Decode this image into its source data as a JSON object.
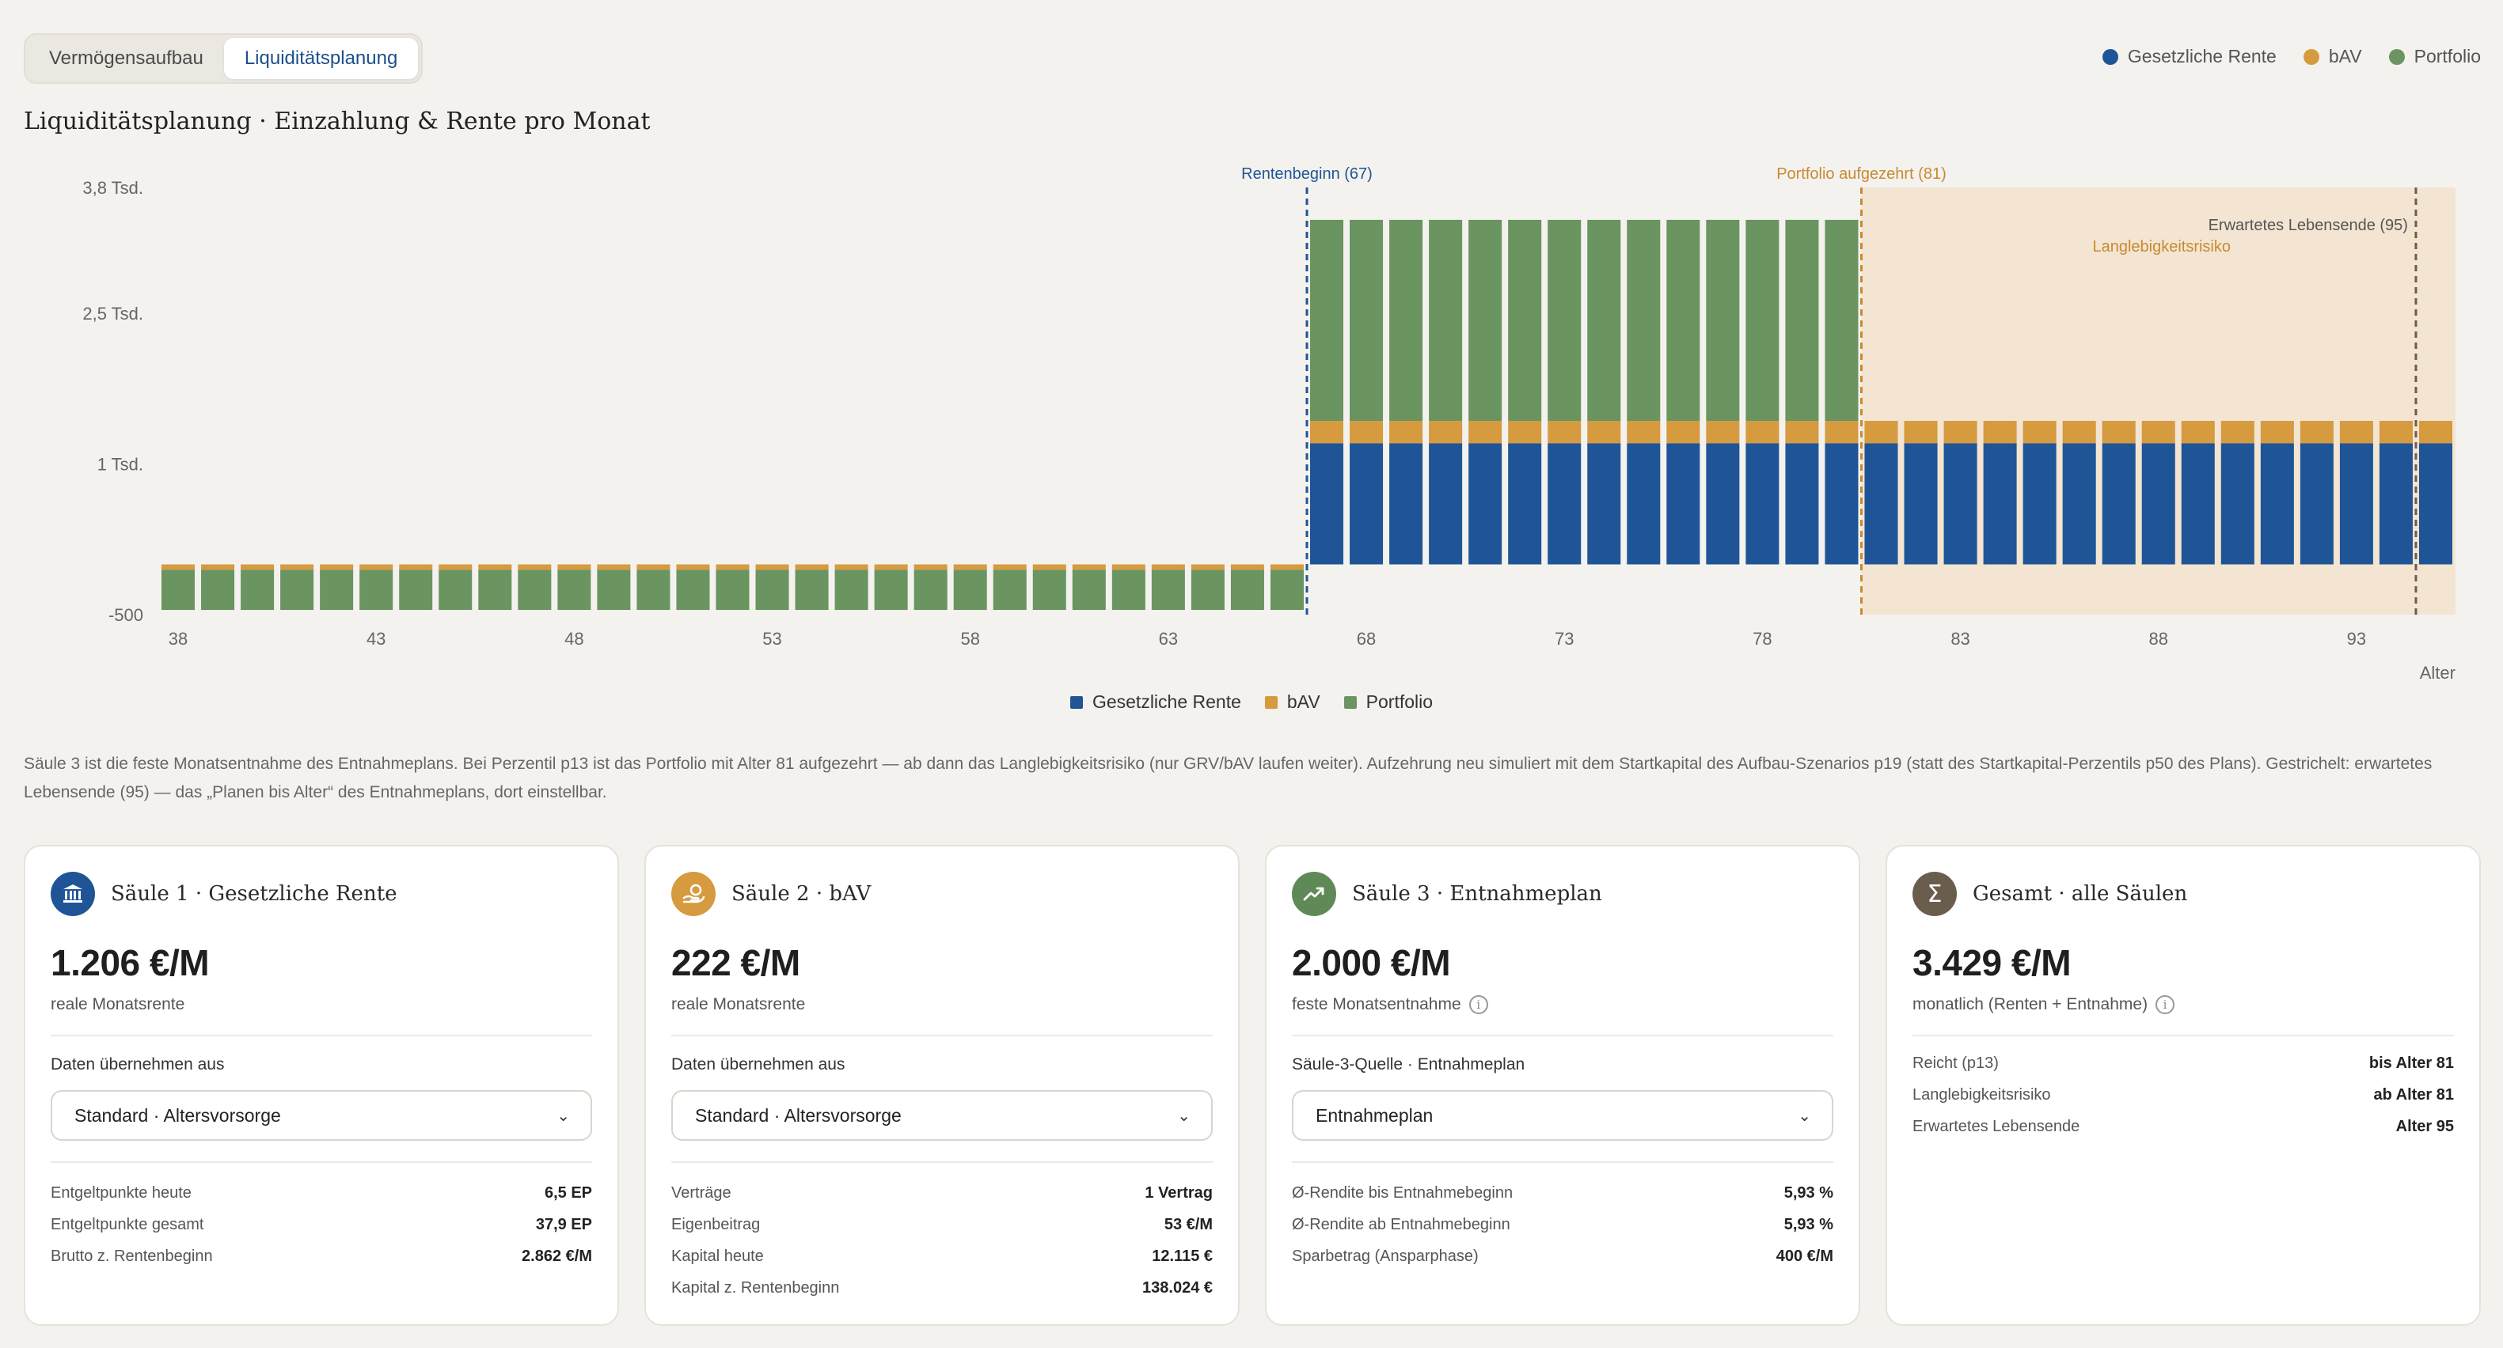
{
  "tabs": [
    {
      "label": "Vermögensaufbau",
      "active": false
    },
    {
      "label": "Liquiditätsplanung",
      "active": true
    }
  ],
  "legend": [
    {
      "label": "Gesetzliche Rente",
      "color": "#1f5596"
    },
    {
      "label": "bAV",
      "color": "#d69a3f"
    },
    {
      "label": "Portfolio",
      "color": "#6a9460"
    }
  ],
  "title": "Liquiditätsplanung · Einzahlung & Rente pro Monat",
  "chart_data": {
    "type": "bar",
    "stacked": true,
    "x_label": "Alter",
    "y_ticks": [
      {
        "value": 3750,
        "label": "3,8 Tsd."
      },
      {
        "value": 2500,
        "label": "2,5 Tsd."
      },
      {
        "value": 1000,
        "label": "1 Tsd."
      },
      {
        "value": -500,
        "label": "-500"
      }
    ],
    "ylim": [
      -500,
      3750
    ],
    "x_ticks": [
      38,
      43,
      48,
      53,
      58,
      63,
      68,
      73,
      78,
      83,
      88,
      93
    ],
    "ages": [
      38,
      39,
      40,
      41,
      42,
      43,
      44,
      45,
      46,
      47,
      48,
      49,
      50,
      51,
      52,
      53,
      54,
      55,
      56,
      57,
      58,
      59,
      60,
      61,
      62,
      63,
      64,
      65,
      66,
      67,
      68,
      69,
      70,
      71,
      72,
      73,
      74,
      75,
      76,
      77,
      78,
      79,
      80,
      81,
      82,
      83,
      84,
      85,
      86,
      87,
      88,
      89,
      90,
      91,
      92,
      93,
      94,
      95
    ],
    "phases": [
      {
        "from_age": 38,
        "to_age": 66,
        "grv": 0,
        "bav": -53,
        "portfolio": -400
      },
      {
        "from_age": 67,
        "to_age": 80,
        "grv": 1206,
        "bav": 222,
        "portfolio": 2000
      },
      {
        "from_age": 81,
        "to_age": 95,
        "grv": 1206,
        "bav": 222,
        "portfolio": 0
      }
    ],
    "markers": [
      {
        "age": 67,
        "label": "Rentenbeginn (67)",
        "color": "#1f5596"
      },
      {
        "age": 81,
        "label": "Portfolio aufgezehrt (81)",
        "color": "#c88a30"
      },
      {
        "age": 95,
        "label": "Erwartetes Lebensende (95)",
        "color": "#6b5d4d"
      }
    ],
    "risk_zone": {
      "from_age": 81,
      "to_age": 95,
      "label": "Langlebigkeitsrisiko"
    }
  },
  "footnote": "Säule 3 ist die feste Monatsentnahme des Entnahmeplans. Bei Perzentil p13 ist das Portfolio mit Alter 81 aufgezehrt — ab dann das Langlebigkeitsrisiko (nur GRV/bAV laufen weiter). Aufzehrung neu simuliert mit dem Startkapital des Aufbau-Szenarios p19 (statt des Startkapital-Perzentils p50 des Plans). Gestrichelt: erwartetes Lebensende (95) — das „Planen bis Alter“ des Entnahmeplans, dort einstellbar.",
  "cards": {
    "grv": {
      "title": "Säule 1 · Gesetzliche Rente",
      "icon": "bank-icon",
      "color": "#1f5596",
      "value": "1.206 €/M",
      "sub": "reale Monatsrente",
      "source_label": "Daten übernehmen aus",
      "select": "Standard · Altersvorsorge",
      "rows": [
        {
          "k": "Entgeltpunkte heute",
          "v": "6,5 EP"
        },
        {
          "k": "Entgeltpunkte gesamt",
          "v": "37,9 EP"
        },
        {
          "k": "Brutto z. Rentenbeginn",
          "v": "2.862 €/M"
        }
      ]
    },
    "bav": {
      "title": "Säule 2 · bAV",
      "icon": "handshake-coin-icon",
      "color": "#d69a3f",
      "value": "222 €/M",
      "sub": "reale Monatsrente",
      "source_label": "Daten übernehmen aus",
      "select": "Standard · Altersvorsorge",
      "rows": [
        {
          "k": "Verträge",
          "v": "1 Vertrag"
        },
        {
          "k": "Eigenbeitrag",
          "v": "53 €/M"
        },
        {
          "k": "Kapital heute",
          "v": "12.115 €"
        },
        {
          "k": "Kapital z. Rentenbeginn",
          "v": "138.024 €"
        }
      ]
    },
    "plan": {
      "title": "Säule 3 · Entnahmeplan",
      "icon": "trend-up-icon",
      "color": "#5f8a57",
      "value": "2.000 €/M",
      "sub": "feste Monatsentnahme",
      "source_label": "Säule-3-Quelle · Entnahmeplan",
      "select": "Entnahmeplan",
      "rows": [
        {
          "k": "Ø-Rendite bis Entnahmebeginn",
          "v": "5,93 %"
        },
        {
          "k": "Ø-Rendite ab Entnahmebeginn",
          "v": "5,93 %"
        },
        {
          "k": "Sparbetrag (Ansparphase)",
          "v": "400 €/M"
        }
      ]
    },
    "total": {
      "title": "Gesamt · alle Säulen",
      "icon": "sigma-icon",
      "color": "#6b5d4d",
      "value": "3.429 €/M",
      "sub": "monatlich (Renten + Entnahme)",
      "rows": [
        {
          "k": "Reicht (p13)",
          "v": "bis Alter 81"
        },
        {
          "k": "Langlebigkeitsrisiko",
          "v": "ab Alter 81"
        },
        {
          "k": "Erwartetes Lebensende",
          "v": "Alter 95"
        }
      ]
    }
  }
}
